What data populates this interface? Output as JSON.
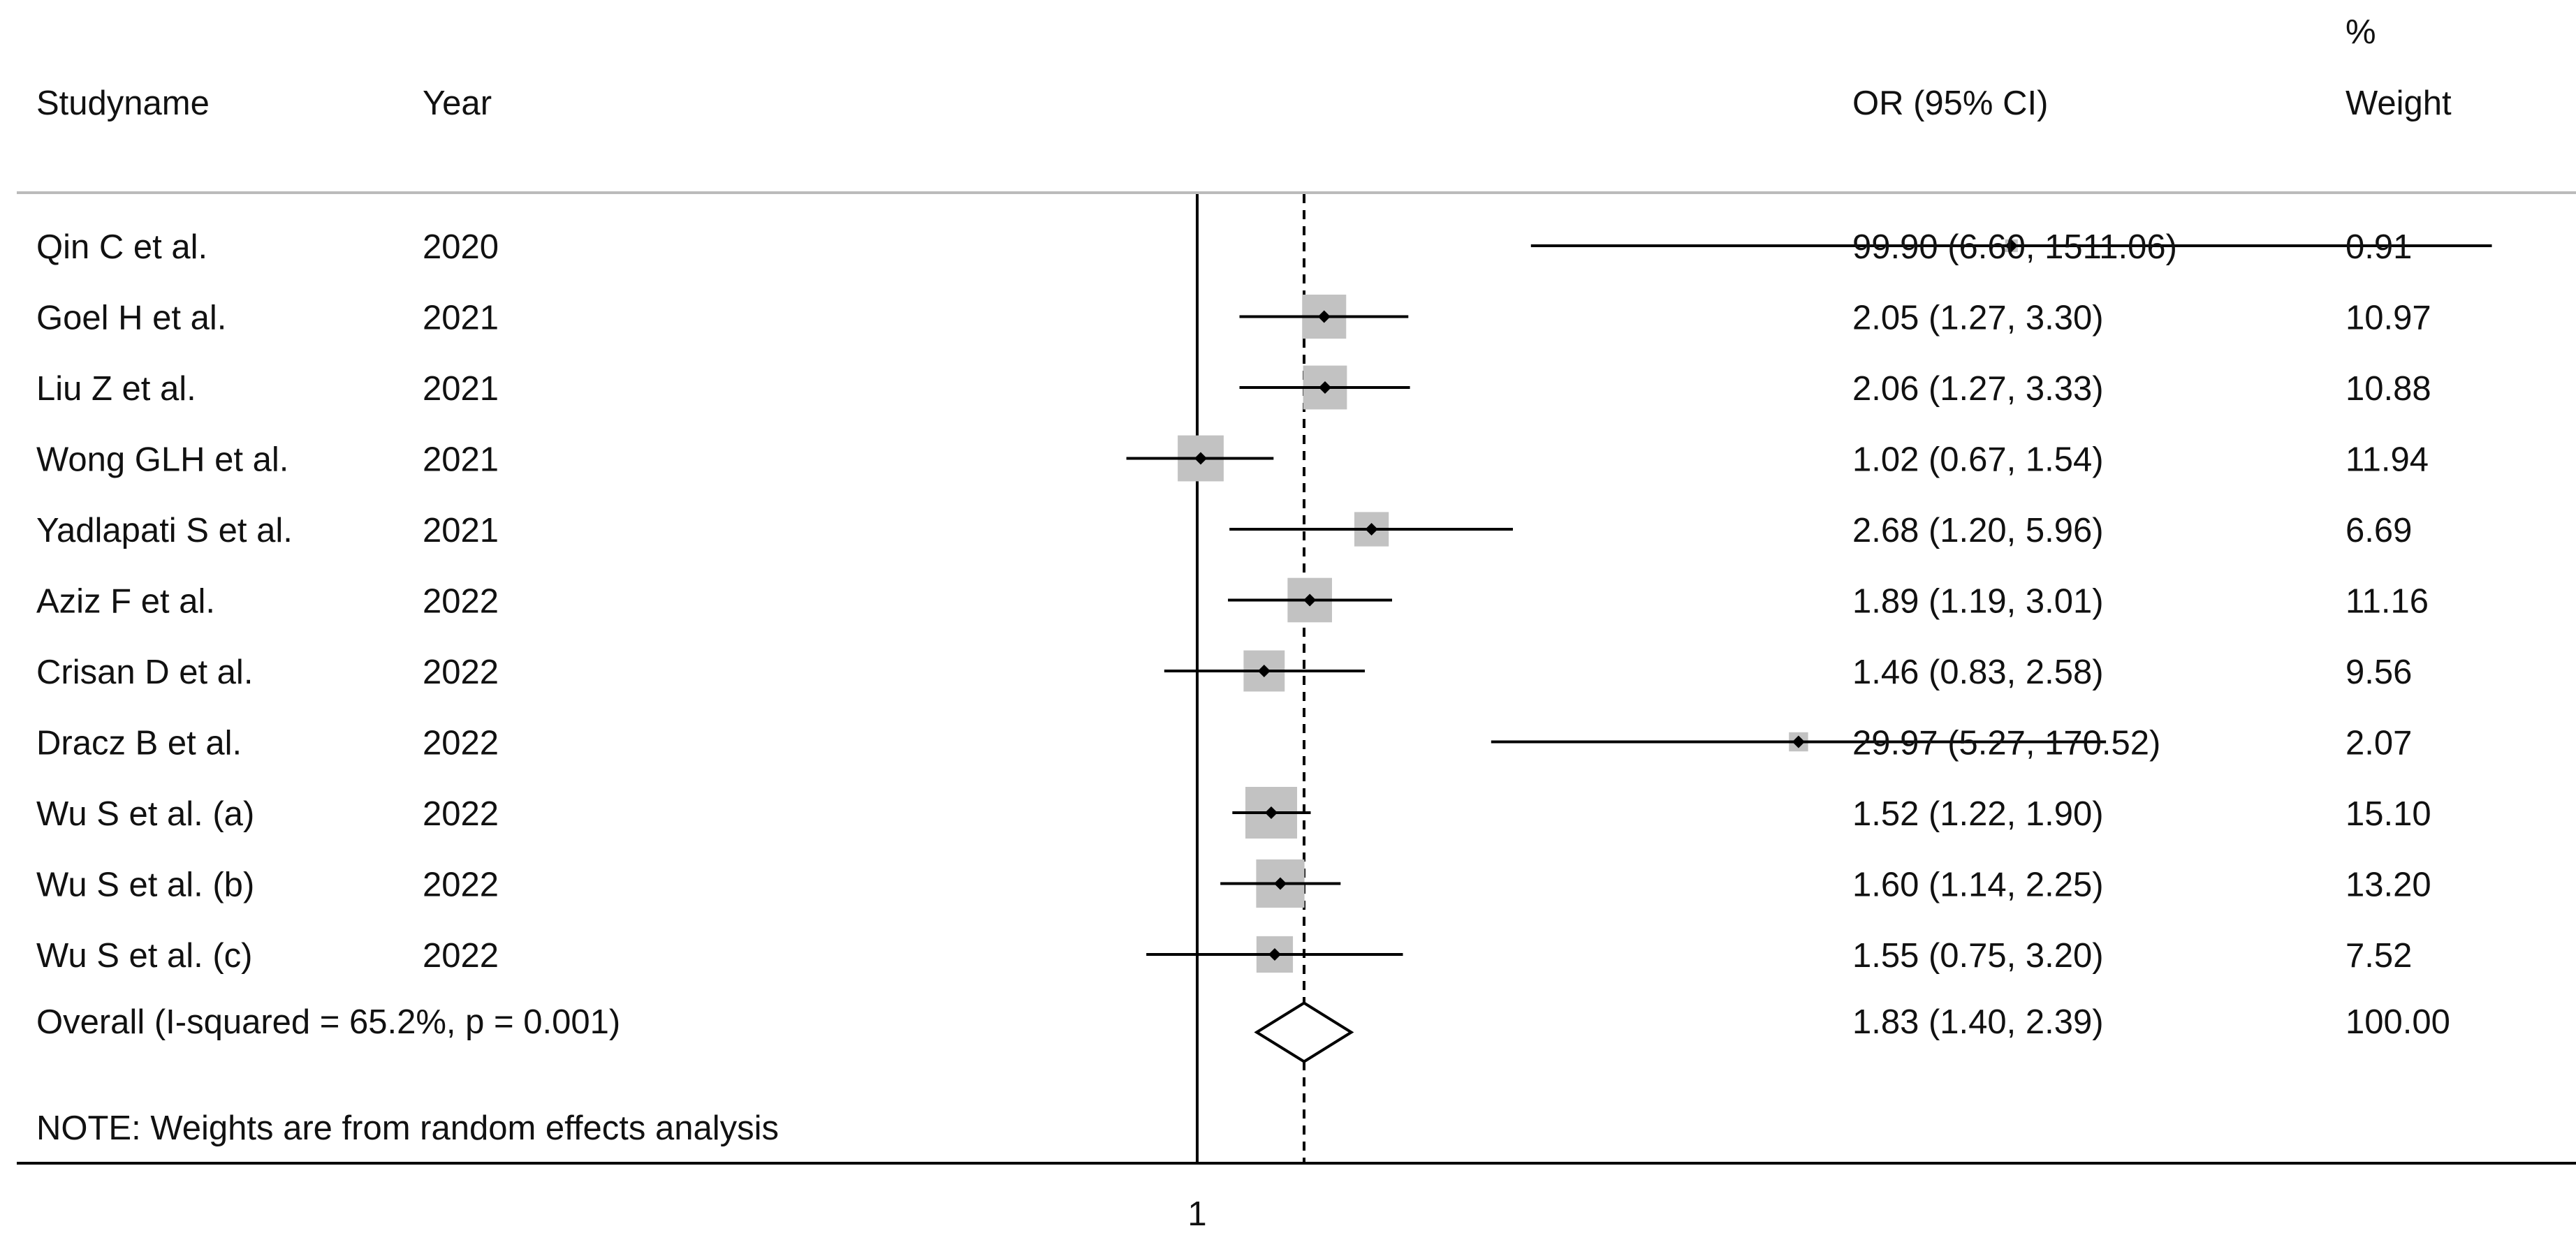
{
  "headers": {
    "study": "Studyname",
    "year": "Year",
    "or_ci": "OR (95% CI)",
    "weight_top": "%",
    "weight_bottom": "Weight"
  },
  "note": "NOTE: Weights are from random effects analysis",
  "colors": {
    "box": "#c2c2c2",
    "line": "#000000",
    "text": "#111111",
    "header_rule": "#bbbbbb"
  },
  "chart_data": {
    "type": "forest",
    "scale": "log",
    "reference_line": 1,
    "x_ticks": [
      1
    ],
    "x_tick_labels": [
      "1"
    ],
    "overall_line": 1.83,
    "studies": [
      {
        "name": "Qin C et al.",
        "year": "2020",
        "or": 99.9,
        "lo": 6.6,
        "hi": 1511.06,
        "ci_text": "99.90 (6.60, 1511.06)",
        "weight": 0.91,
        "weight_text": "0.91"
      },
      {
        "name": "Goel H et al.",
        "year": "2021",
        "or": 2.05,
        "lo": 1.27,
        "hi": 3.3,
        "ci_text": "2.05 (1.27, 3.30)",
        "weight": 10.97,
        "weight_text": "10.97"
      },
      {
        "name": "Liu Z et al.",
        "year": "2021",
        "or": 2.06,
        "lo": 1.27,
        "hi": 3.33,
        "ci_text": "2.06 (1.27, 3.33)",
        "weight": 10.88,
        "weight_text": "10.88"
      },
      {
        "name": "Wong GLH et al.",
        "year": "2021",
        "or": 1.02,
        "lo": 0.67,
        "hi": 1.54,
        "ci_text": "1.02 (0.67, 1.54)",
        "weight": 11.94,
        "weight_text": "11.94"
      },
      {
        "name": "Yadlapati S et al.",
        "year": "2021",
        "or": 2.68,
        "lo": 1.2,
        "hi": 5.96,
        "ci_text": "2.68 (1.20, 5.96)",
        "weight": 6.69,
        "weight_text": "6.69"
      },
      {
        "name": "Aziz F et al.",
        "year": "2022",
        "or": 1.89,
        "lo": 1.19,
        "hi": 3.01,
        "ci_text": "1.89 (1.19, 3.01)",
        "weight": 11.16,
        "weight_text": "11.16"
      },
      {
        "name": "Crisan D et al.",
        "year": "2022",
        "or": 1.46,
        "lo": 0.83,
        "hi": 2.58,
        "ci_text": "1.46 (0.83, 2.58)",
        "weight": 9.56,
        "weight_text": "9.56"
      },
      {
        "name": "Dracz B et al.",
        "year": "2022",
        "or": 29.97,
        "lo": 5.27,
        "hi": 170.52,
        "ci_text": "29.97 (5.27, 170.52)",
        "weight": 2.07,
        "weight_text": "2.07"
      },
      {
        "name": "Wu S et al. (a)",
        "year": "2022",
        "or": 1.52,
        "lo": 1.22,
        "hi": 1.9,
        "ci_text": "1.52 (1.22, 1.90)",
        "weight": 15.1,
        "weight_text": "15.10"
      },
      {
        "name": "Wu S et al. (b)",
        "year": "2022",
        "or": 1.6,
        "lo": 1.14,
        "hi": 2.25,
        "ci_text": "1.60 (1.14, 2.25)",
        "weight": 13.2,
        "weight_text": "13.20"
      },
      {
        "name": "Wu S et al. (c)",
        "year": "2022",
        "or": 1.55,
        "lo": 0.75,
        "hi": 3.2,
        "ci_text": "1.55 (0.75, 3.20)",
        "weight": 7.52,
        "weight_text": "7.52"
      }
    ],
    "overall": {
      "label": "Overall  (I-squared = 65.2%, p = 0.001)",
      "or": 1.83,
      "lo": 1.4,
      "hi": 2.39,
      "ci_text": "1.83 (1.40, 2.39)",
      "weight_text": "100.00"
    }
  }
}
